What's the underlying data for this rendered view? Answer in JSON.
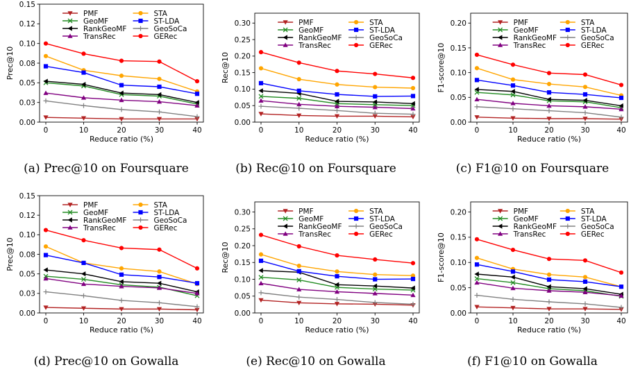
{
  "series_styles": [
    {
      "name": "PMF",
      "color": "#b22222",
      "marker": "triangle-down"
    },
    {
      "name": "GeoMF",
      "color": "#228b22",
      "marker": "x"
    },
    {
      "name": "RankGeoMF",
      "color": "#000000",
      "marker": "triangle-left"
    },
    {
      "name": "TransRec",
      "color": "#800080",
      "marker": "triangle-up"
    },
    {
      "name": "STA",
      "color": "#ffa500",
      "marker": "circle"
    },
    {
      "name": "ST-LDA",
      "color": "#0000ff",
      "marker": "square"
    },
    {
      "name": "GeoSoCa",
      "color": "#808080",
      "marker": "plus"
    },
    {
      "name": "GERec",
      "color": "#ff0000",
      "marker": "circle"
    }
  ],
  "chart_data": [
    {
      "type": "line",
      "caption": "(a) Prec@10 on Foursquare",
      "xlabel": "Reduce ratio (%)",
      "ylabel": "Prec@10",
      "x": [
        0,
        10,
        20,
        30,
        40
      ],
      "xticks": [
        "0",
        "10",
        "20",
        "30",
        "40"
      ],
      "ylim": [
        0,
        0.15
      ],
      "yticks": [
        0,
        0.025,
        0.05,
        0.075,
        0.1,
        0.125,
        0.15
      ],
      "ytick_labels": [
        "0.00",
        "0.03",
        "0.05",
        "0.08",
        "0.10",
        "0.12",
        "0.15"
      ],
      "series": [
        {
          "name": "PMF",
          "values": [
            0.006,
            0.005,
            0.004,
            0.004,
            0.004
          ]
        },
        {
          "name": "GeoMF",
          "values": [
            0.05,
            0.046,
            0.035,
            0.033,
            0.023
          ]
        },
        {
          "name": "RankGeoMF",
          "values": [
            0.052,
            0.048,
            0.037,
            0.035,
            0.025
          ]
        },
        {
          "name": "TransRec",
          "values": [
            0.037,
            0.031,
            0.028,
            0.026,
            0.021
          ]
        },
        {
          "name": "STA",
          "values": [
            0.084,
            0.066,
            0.059,
            0.055,
            0.039
          ]
        },
        {
          "name": "ST-LDA",
          "values": [
            0.071,
            0.063,
            0.047,
            0.045,
            0.036
          ]
        },
        {
          "name": "GeoSoCa",
          "values": [
            0.027,
            0.021,
            0.016,
            0.013,
            0.007
          ]
        },
        {
          "name": "GERec",
          "values": [
            0.1,
            0.087,
            0.078,
            0.077,
            0.052
          ]
        }
      ]
    },
    {
      "type": "line",
      "caption": "(b) Rec@10 on Foursquare",
      "xlabel": "Reduce ratio (%)",
      "ylabel": "Rec@10",
      "x": [
        0,
        10,
        20,
        30,
        40
      ],
      "xticks": [
        "0",
        "10",
        "20",
        "30",
        "40"
      ],
      "ylim": [
        0,
        0.33
      ],
      "yticks": [
        0,
        0.05,
        0.1,
        0.15,
        0.2,
        0.25,
        0.3
      ],
      "ytick_labels": [
        "0.00",
        "0.05",
        "0.10",
        "0.15",
        "0.20",
        "0.25",
        "0.30"
      ],
      "series": [
        {
          "name": "PMF",
          "values": [
            0.025,
            0.02,
            0.018,
            0.018,
            0.016
          ]
        },
        {
          "name": "GeoMF",
          "values": [
            0.078,
            0.072,
            0.056,
            0.053,
            0.05
          ]
        },
        {
          "name": "RankGeoMF",
          "values": [
            0.095,
            0.087,
            0.063,
            0.061,
            0.056
          ]
        },
        {
          "name": "TransRec",
          "values": [
            0.065,
            0.054,
            0.048,
            0.045,
            0.041
          ]
        },
        {
          "name": "STA",
          "values": [
            0.163,
            0.13,
            0.114,
            0.106,
            0.103
          ]
        },
        {
          "name": "ST-LDA",
          "values": [
            0.118,
            0.095,
            0.084,
            0.078,
            0.079
          ]
        },
        {
          "name": "GeoSoCa",
          "values": [
            0.048,
            0.042,
            0.035,
            0.027,
            0.024
          ]
        },
        {
          "name": "GERec",
          "values": [
            0.212,
            0.18,
            0.155,
            0.146,
            0.134
          ]
        }
      ]
    },
    {
      "type": "line",
      "caption": "(c) F1@10 on Foursquare",
      "xlabel": "Reduce ratio (%)",
      "ylabel": "F1-score@10",
      "x": [
        0,
        10,
        20,
        30,
        40
      ],
      "xticks": [
        "0",
        "10",
        "20",
        "30",
        "40"
      ],
      "ylim": [
        0,
        0.22
      ],
      "yticks": [
        0,
        0.05,
        0.1,
        0.15,
        0.2
      ],
      "ytick_labels": [
        "0.00",
        "0.05",
        "0.10",
        "0.15",
        "0.20"
      ],
      "series": [
        {
          "name": "PMF",
          "values": [
            0.01,
            0.008,
            0.007,
            0.007,
            0.006
          ]
        },
        {
          "name": "GeoMF",
          "values": [
            0.06,
            0.055,
            0.043,
            0.041,
            0.029
          ]
        },
        {
          "name": "RankGeoMF",
          "values": [
            0.066,
            0.062,
            0.046,
            0.044,
            0.033
          ]
        },
        {
          "name": "TransRec",
          "values": [
            0.046,
            0.038,
            0.033,
            0.031,
            0.026
          ]
        },
        {
          "name": "STA",
          "values": [
            0.109,
            0.086,
            0.077,
            0.071,
            0.054
          ]
        },
        {
          "name": "ST-LDA",
          "values": [
            0.085,
            0.074,
            0.06,
            0.056,
            0.049
          ]
        },
        {
          "name": "GeoSoCa",
          "values": [
            0.031,
            0.027,
            0.023,
            0.019,
            0.01
          ]
        },
        {
          "name": "GERec",
          "values": [
            0.136,
            0.116,
            0.099,
            0.096,
            0.075
          ]
        }
      ]
    },
    {
      "type": "line",
      "caption": "(d) Prec@10 on Gowalla",
      "xlabel": "Reduce ratio (%)",
      "ylabel": "Prec@10",
      "x": [
        0,
        10,
        20,
        30,
        40
      ],
      "xticks": [
        "0",
        "10",
        "20",
        "30",
        "40"
      ],
      "ylim": [
        0,
        0.15
      ],
      "yticks": [
        0,
        0.025,
        0.05,
        0.075,
        0.1,
        0.125,
        0.15
      ],
      "ytick_labels": [
        "0.00",
        "0.03",
        "0.05",
        "0.08",
        "0.10",
        "0.12",
        "0.15"
      ],
      "series": [
        {
          "name": "PMF",
          "values": [
            0.007,
            0.006,
            0.005,
            0.005,
            0.004
          ]
        },
        {
          "name": "GeoMF",
          "values": [
            0.047,
            0.043,
            0.036,
            0.033,
            0.022
          ]
        },
        {
          "name": "RankGeoMF",
          "values": [
            0.055,
            0.05,
            0.04,
            0.038,
            0.027
          ]
        },
        {
          "name": "TransRec",
          "values": [
            0.044,
            0.037,
            0.034,
            0.032,
            0.025
          ]
        },
        {
          "name": "STA",
          "values": [
            0.085,
            0.064,
            0.057,
            0.053,
            0.037
          ]
        },
        {
          "name": "ST-LDA",
          "values": [
            0.074,
            0.064,
            0.049,
            0.046,
            0.038
          ]
        },
        {
          "name": "GeoSoCa",
          "values": [
            0.027,
            0.022,
            0.016,
            0.013,
            0.008
          ]
        },
        {
          "name": "GERec",
          "values": [
            0.106,
            0.093,
            0.083,
            0.081,
            0.057
          ]
        }
      ]
    },
    {
      "type": "line",
      "caption": "(e) Rec@10 on Gowalla",
      "xlabel": "Reduce ratio (%)",
      "ylabel": "Rec@10",
      "x": [
        0,
        10,
        20,
        30,
        40
      ],
      "xticks": [
        "0",
        "10",
        "20",
        "30",
        "40"
      ],
      "ylim": [
        0,
        0.33
      ],
      "yticks": [
        0,
        0.05,
        0.1,
        0.15,
        0.2,
        0.25,
        0.3
      ],
      "ytick_labels": [
        "0.00",
        "0.05",
        "0.10",
        "0.15",
        "0.20",
        "0.25",
        "0.30"
      ],
      "series": [
        {
          "name": "PMF",
          "values": [
            0.038,
            0.03,
            0.027,
            0.026,
            0.023
          ]
        },
        {
          "name": "GeoMF",
          "values": [
            0.106,
            0.098,
            0.076,
            0.071,
            0.068
          ]
        },
        {
          "name": "RankGeoMF",
          "values": [
            0.126,
            0.121,
            0.084,
            0.08,
            0.074
          ]
        },
        {
          "name": "TransRec",
          "values": [
            0.088,
            0.07,
            0.063,
            0.058,
            0.053
          ]
        },
        {
          "name": "STA",
          "values": [
            0.174,
            0.14,
            0.123,
            0.114,
            0.111
          ]
        },
        {
          "name": "ST-LDA",
          "values": [
            0.155,
            0.124,
            0.109,
            0.1,
            0.101
          ]
        },
        {
          "name": "GeoSoCa",
          "values": [
            0.06,
            0.047,
            0.04,
            0.031,
            0.026
          ]
        },
        {
          "name": "GERec",
          "values": [
            0.232,
            0.198,
            0.171,
            0.159,
            0.148
          ]
        }
      ]
    },
    {
      "type": "line",
      "caption": "(f) F1@10 on Gowalla",
      "xlabel": "Reduce ratio (%)",
      "ylabel": "F1-score@10",
      "x": [
        0,
        10,
        20,
        30,
        40
      ],
      "xticks": [
        "0",
        "10",
        "20",
        "30",
        "40"
      ],
      "ylim": [
        0,
        0.22
      ],
      "yticks": [
        0,
        0.05,
        0.1,
        0.15,
        0.2
      ],
      "ytick_labels": [
        "0.00",
        "0.05",
        "0.10",
        "0.15",
        "0.20"
      ],
      "series": [
        {
          "name": "PMF",
          "values": [
            0.012,
            0.01,
            0.008,
            0.008,
            0.007
          ]
        },
        {
          "name": "GeoMF",
          "values": [
            0.068,
            0.06,
            0.048,
            0.044,
            0.033
          ]
        },
        {
          "name": "RankGeoMF",
          "values": [
            0.077,
            0.071,
            0.052,
            0.048,
            0.037
          ]
        },
        {
          "name": "TransRec",
          "values": [
            0.06,
            0.049,
            0.044,
            0.041,
            0.034
          ]
        },
        {
          "name": "STA",
          "values": [
            0.109,
            0.087,
            0.076,
            0.071,
            0.052
          ]
        },
        {
          "name": "ST-LDA",
          "values": [
            0.096,
            0.082,
            0.066,
            0.062,
            0.052
          ]
        },
        {
          "name": "GeoSoCa",
          "values": [
            0.035,
            0.027,
            0.022,
            0.018,
            0.011
          ]
        },
        {
          "name": "GERec",
          "values": [
            0.146,
            0.125,
            0.107,
            0.104,
            0.08
          ]
        }
      ]
    }
  ]
}
